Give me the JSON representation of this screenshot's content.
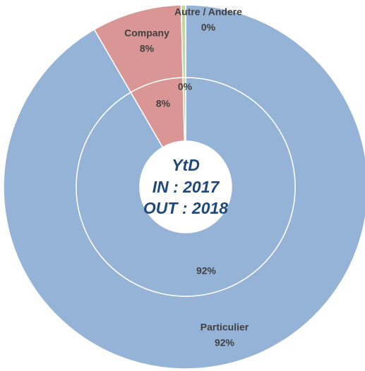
{
  "chart_data": {
    "type": "donut",
    "center_text": [
      "YtD",
      "IN : 2017",
      "OUT : 2018"
    ],
    "categories": [
      "Particulier",
      "Company",
      "Autre / Andere"
    ],
    "colors": [
      "#95b3d7",
      "#d99694",
      "#c3d69b"
    ],
    "series": [
      {
        "values": [
          92,
          8,
          0.4
        ],
        "value_labels": [
          "92%",
          "8%",
          "0%"
        ]
      },
      {
        "values": [
          92,
          8,
          0.4
        ],
        "value_labels": [
          "92%",
          "8%",
          "0%"
        ]
      }
    ]
  }
}
